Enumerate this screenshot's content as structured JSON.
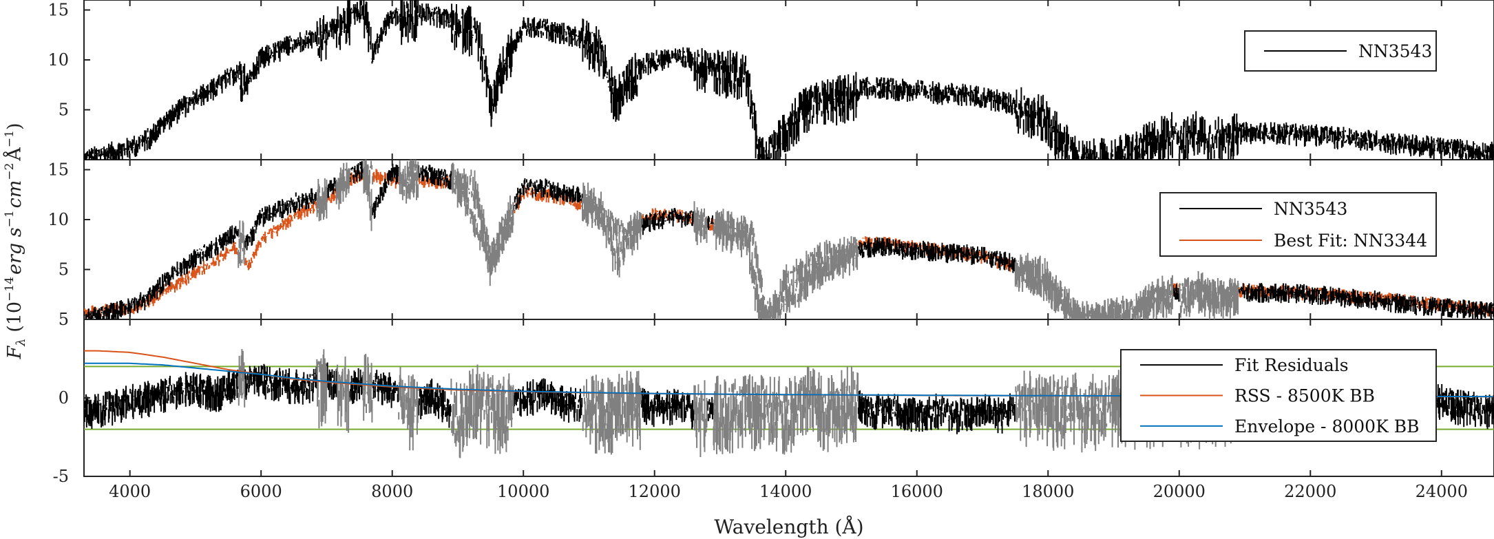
{
  "chart_data": {
    "type": "line",
    "xlabel": "Wavelength (Å)",
    "ylabel": "F_λ (10^-14 erg s^-1 cm^-2 Å^-1)",
    "ylabel_parts": {
      "F": "F",
      "lambda": "λ",
      "open": " (10",
      "exp1": "−14",
      "erg": "erg s",
      "exp2": "−1",
      "cm": "cm",
      "exp3": "−2",
      "A": "Å",
      "exp4": "−1",
      "close": ")"
    },
    "xlim": [
      3300,
      24800
    ],
    "x_ticks": [
      4000,
      6000,
      8000,
      10000,
      12000,
      14000,
      16000,
      18000,
      20000,
      22000,
      24000
    ],
    "x_tick_labels": [
      "4000",
      "6000",
      "8000",
      "10000",
      "12000",
      "14000",
      "16000",
      "18000",
      "20000",
      "22000",
      "24000"
    ],
    "colors": {
      "object": "#000000",
      "fit": "#d95319",
      "masked": "#808080",
      "rss_bb": "#d95319",
      "envelope_bb": "#0072bd",
      "threshold": "#77ac30"
    },
    "telluric_masked_regions": [
      [
        5650,
        5750
      ],
      [
        6850,
        7000
      ],
      [
        7150,
        7350
      ],
      [
        7550,
        7700
      ],
      [
        8100,
        8400
      ],
      [
        8900,
        9850
      ],
      [
        10900,
        11800
      ],
      [
        12600,
        12800
      ],
      [
        12900,
        13600
      ],
      [
        13600,
        15100
      ],
      [
        17500,
        19900
      ],
      [
        20000,
        20900
      ]
    ],
    "panels": [
      {
        "id": "top",
        "ylim": [
          0,
          16
        ],
        "y_ticks": [
          5,
          10,
          15
        ],
        "y_tick_labels": [
          "5",
          "10",
          "15"
        ],
        "legend": [
          {
            "label": "NN3543",
            "color": "#000000"
          }
        ],
        "series": [
          {
            "name": "NN3543",
            "x": [
              3300,
              3700,
              4000,
              4300,
              4500,
              4800,
              5000,
              5300,
              5600,
              5800,
              6000,
              6200,
              6500,
              6800,
              7000,
              7300,
              7600,
              7700,
              8000,
              8200,
              8500,
              8800,
              9000,
              9300,
              9500,
              9700,
              10000,
              10300,
              10600,
              10900,
              11200,
              11400,
              11600,
              11900,
              12200,
              12500,
              12800,
              13100,
              13400,
              13600,
              13700,
              13800,
              14000,
              14300,
              14600,
              15000,
              15200,
              15500,
              15800,
              16100,
              16400,
              16800,
              17100,
              17400,
              17700,
              18000,
              18200,
              18500,
              18800,
              19100,
              19400,
              19700,
              19900,
              20100,
              20300,
              20500,
              20700,
              21000,
              21500,
              22000,
              22500,
              23000,
              23500,
              24000,
              24500,
              24800
            ],
            "y": [
              0.3,
              1.0,
              1.5,
              2.5,
              4.0,
              5.5,
              6.5,
              7.5,
              9.0,
              8.0,
              10.5,
              11.0,
              12.0,
              12.5,
              13.0,
              14.5,
              15.5,
              11.0,
              15.0,
              14.5,
              15.0,
              14.5,
              14.0,
              13.5,
              6.0,
              10.0,
              13.5,
              13.5,
              13.0,
              12.5,
              11.5,
              6.5,
              8.5,
              10.0,
              10.5,
              10.5,
              10.0,
              9.5,
              9.0,
              1.0,
              0.3,
              1.0,
              4.0,
              5.5,
              6.5,
              7.0,
              7.5,
              7.5,
              7.3,
              7.2,
              7.0,
              6.8,
              6.5,
              6.0,
              5.5,
              4.5,
              2.5,
              0.3,
              0.4,
              0.8,
              1.5,
              2.8,
              3.2,
              2.5,
              3.5,
              2.5,
              2.8,
              3.0,
              3.0,
              2.8,
              2.5,
              2.2,
              1.8,
              1.5,
              1.2,
              1.0
            ]
          }
        ]
      },
      {
        "id": "middle",
        "ylim": [
          0,
          16
        ],
        "y_ticks": [
          5,
          10,
          15
        ],
        "y_tick_labels": [
          "5",
          "10",
          "15"
        ],
        "legend": [
          {
            "label": "NN3543",
            "color": "#000000"
          },
          {
            "label": "Best Fit: NN3344",
            "color": "#d95319"
          }
        ],
        "series": [
          {
            "name": "NN3543",
            "x": [
              3300,
              3700,
              4000,
              4300,
              4500,
              4800,
              5000,
              5300,
              5600,
              5800,
              6000,
              6200,
              6500,
              6800,
              7000,
              7300,
              7600,
              7700,
              8000,
              8200,
              8500,
              8800,
              9000,
              9300,
              9500,
              9700,
              10000,
              10300,
              10600,
              10900,
              11200,
              11400,
              11600,
              11900,
              12200,
              12500,
              12800,
              13100,
              13400,
              13600,
              13700,
              13800,
              14000,
              14300,
              14600,
              15000,
              15200,
              15500,
              15800,
              16100,
              16400,
              16800,
              17100,
              17400,
              17700,
              18000,
              18200,
              18500,
              18800,
              19100,
              19400,
              19700,
              19900,
              20100,
              20300,
              20500,
              20700,
              21000,
              21500,
              22000,
              22500,
              23000,
              23500,
              24000,
              24500,
              24800
            ],
            "y": [
              0.3,
              1.0,
              1.5,
              2.5,
              4.0,
              5.5,
              6.5,
              7.5,
              9.0,
              8.0,
              10.5,
              11.0,
              12.0,
              12.5,
              13.0,
              14.5,
              15.5,
              11.0,
              15.0,
              14.5,
              15.0,
              14.5,
              14.0,
              13.5,
              6.0,
              10.0,
              13.5,
              13.5,
              13.0,
              12.5,
              11.5,
              6.5,
              8.5,
              10.0,
              10.5,
              10.5,
              10.0,
              9.5,
              9.0,
              1.0,
              0.3,
              1.0,
              4.0,
              5.5,
              6.5,
              7.0,
              7.5,
              7.5,
              7.3,
              7.2,
              7.0,
              6.8,
              6.5,
              6.0,
              5.5,
              4.5,
              2.5,
              0.3,
              0.4,
              0.8,
              1.5,
              2.8,
              3.2,
              2.5,
              3.5,
              2.5,
              2.8,
              3.0,
              3.0,
              2.8,
              2.5,
              2.2,
              1.8,
              1.5,
              1.2,
              1.0
            ]
          },
          {
            "name": "Best Fit: NN3344",
            "x": [
              3300,
              3700,
              4000,
              4300,
              4500,
              4800,
              5000,
              5300,
              5600,
              5800,
              6000,
              6200,
              6500,
              6800,
              7000,
              7300,
              7600,
              8000,
              8500,
              9000,
              9500,
              10000,
              10500,
              11000,
              11500,
              12000,
              12500,
              13000,
              13500,
              13700,
              14000,
              14500,
              15000,
              15200,
              15500,
              16000,
              16500,
              17000,
              17500,
              18000,
              18300,
              18600,
              19000,
              19500,
              19900,
              20300,
              20700,
              21000,
              21500,
              22000,
              22500,
              23000,
              23500,
              24000,
              24500,
              24800
            ],
            "y": [
              0.8,
              1.2,
              1.3,
              2.0,
              3.0,
              4.0,
              5.0,
              6.0,
              7.5,
              5.5,
              8.0,
              9.0,
              10.5,
              11.5,
              12.0,
              14.0,
              15.0,
              14.0,
              14.0,
              14.0,
              6.0,
              13.0,
              12.5,
              11.5,
              9.0,
              10.8,
              10.5,
              9.5,
              9.0,
              1.0,
              2.0,
              5.0,
              7.2,
              8.0,
              7.8,
              7.5,
              7.0,
              6.5,
              5.5,
              4.0,
              1.5,
              0.4,
              0.8,
              2.0,
              3.2,
              3.0,
              2.8,
              3.1,
              3.0,
              2.8,
              2.6,
              2.3,
              2.0,
              1.7,
              1.3,
              1.0
            ]
          }
        ]
      },
      {
        "id": "bottom",
        "ylim": [
          -5,
          5
        ],
        "y_ticks": [
          -5,
          0,
          5
        ],
        "y_tick_labels": [
          "-5",
          "0",
          "5"
        ],
        "threshold_lines": [
          2,
          -2
        ],
        "legend": [
          {
            "label": "Fit Residuals",
            "color": "#000000"
          },
          {
            "label": "RSS - 8500K BB",
            "color": "#d95319"
          },
          {
            "label": "Envelope - 8000K BB",
            "color": "#0072bd"
          }
        ],
        "series": [
          {
            "name": "RSS - 8500K BB",
            "x": [
              3300,
              3500,
              4000,
              4500,
              5000,
              5500,
              6000,
              6500,
              7000,
              7500,
              8000,
              9000,
              10000,
              11000,
              12000,
              13000,
              14000,
              16000,
              18000,
              20000,
              22000,
              24000,
              24800
            ],
            "y": [
              3.0,
              3.0,
              2.9,
              2.6,
              2.2,
              1.8,
              1.5,
              1.2,
              1.0,
              0.85,
              0.7,
              0.5,
              0.4,
              0.32,
              0.27,
              0.23,
              0.2,
              0.16,
              0.13,
              0.11,
              0.1,
              0.08,
              0.08
            ]
          },
          {
            "name": "Envelope - 8000K BB",
            "x": [
              3300,
              3500,
              4000,
              4500,
              5000,
              5500,
              6000,
              6500,
              7000,
              7500,
              8000,
              9000,
              10000,
              11000,
              12000,
              13000,
              14000,
              16000,
              18000,
              20000,
              22000,
              24000,
              24800
            ],
            "y": [
              2.2,
              2.2,
              2.2,
              2.1,
              1.9,
              1.7,
              1.5,
              1.25,
              1.05,
              0.9,
              0.75,
              0.55,
              0.42,
              0.34,
              0.28,
              0.24,
              0.21,
              0.17,
              0.14,
              0.12,
              0.1,
              0.09,
              0.08
            ]
          },
          {
            "name": "Fit Residuals",
            "x": [
              3300,
              3700,
              4000,
              4300,
              4600,
              5000,
              5300,
              5600,
              6000,
              6300,
              6600,
              7000,
              7300,
              7600,
              8000,
              8300,
              8600,
              9000,
              9300,
              9600,
              10000,
              10300,
              10600,
              11000,
              11300,
              11600,
              12000,
              12300,
              12600,
              13000,
              13300,
              13600,
              14000,
              14300,
              14600,
              15000,
              15300,
              15600,
              16000,
              16300,
              16600,
              17000,
              17300,
              17600,
              18000,
              18300,
              18600,
              19000,
              19300,
              19600,
              20000,
              20300,
              20600,
              21000,
              21300,
              21600,
              22000,
              22300,
              22600,
              23000,
              23300,
              23600,
              24000,
              24300,
              24800
            ],
            "y": [
              -0.5,
              -0.3,
              0.1,
              0.3,
              0.6,
              1.0,
              0.5,
              1.3,
              1.5,
              1.2,
              1.0,
              1.5,
              1.0,
              1.2,
              0.8,
              -0.3,
              0.5,
              -0.8,
              0.5,
              -0.3,
              0.2,
              0.6,
              0.0,
              -0.2,
              -0.4,
              0.2,
              -0.4,
              -0.2,
              -0.6,
              -0.3,
              -0.3,
              -0.2,
              -0.4,
              0.5,
              -0.3,
              0.4,
              -0.6,
              -0.4,
              -0.7,
              -0.5,
              -0.8,
              -0.5,
              -0.8,
              0.3,
              -0.2,
              0.1,
              -0.3,
              0.1,
              0.0,
              0.1,
              0.0,
              0.1,
              0.0,
              0.1,
              0.0,
              0.1,
              0.0,
              0.1,
              0.0,
              0.1,
              0.0,
              0.0,
              0.1,
              -0.3,
              -0.5
            ]
          }
        ]
      }
    ]
  }
}
